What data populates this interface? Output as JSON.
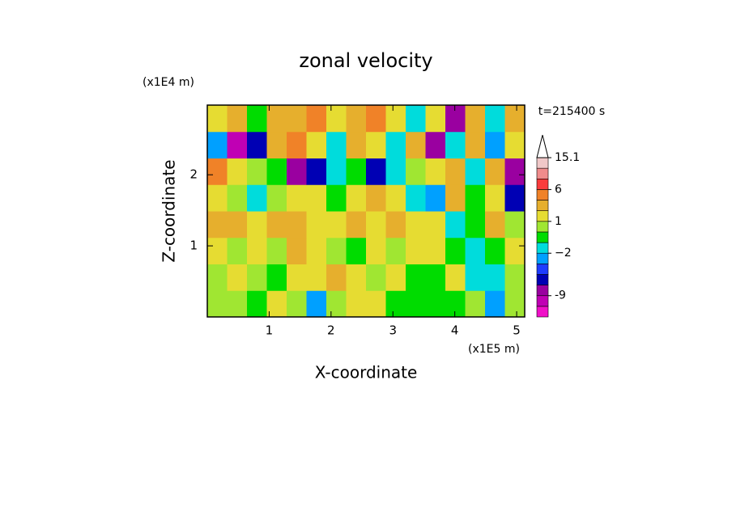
{
  "chart_data": {
    "type": "contour",
    "title": "zonal velocity",
    "time_label": "t=215400 s",
    "x_label": "X-coordinate",
    "y_label": "Z-coordinate",
    "x_unit": "(x1E5 m)",
    "y_unit": "(x1E4 m)",
    "xlim": [
      0,
      5.13
    ],
    "ylim": [
      0,
      2.98
    ],
    "xticks": [
      1,
      2,
      3,
      4,
      5
    ],
    "yticks": [
      1,
      2
    ],
    "levels": [
      -15,
      -12,
      -9,
      -6,
      -4,
      -3,
      -2,
      -1,
      0,
      1,
      2,
      4,
      6,
      9,
      12,
      15.1
    ],
    "level_labels": [
      {
        "value": -9,
        "label": "-9"
      },
      {
        "value": -2,
        "label": "−2"
      },
      {
        "value": 1,
        "label": "1"
      },
      {
        "value": 6,
        "label": "6"
      },
      {
        "value": 15.1,
        "label": "15.1"
      }
    ],
    "colors": [
      "#f010c8",
      "#c000b4",
      "#9a00a0",
      "#0000b4",
      "#1e3cff",
      "#00a0ff",
      "#00dcdc",
      "#00dc00",
      "#a0e632",
      "#e6dc32",
      "#e6af2d",
      "#f08228",
      "#fa3c3c",
      "#f08c8c",
      "#f0c8c8"
    ],
    "field": [
      [
        0,
        0.5,
        -0.5,
        1,
        0.5,
        -3,
        0.5,
        1.5,
        1,
        -0.5,
        -0.5,
        -1,
        -0.5,
        0.5,
        -3,
        0.5
      ],
      [
        0.5,
        1.5,
        0.5,
        -0.5,
        1.5,
        1.5,
        2,
        1.5,
        0.5,
        1.5,
        -0.5,
        -0.5,
        1.5,
        -1.5,
        -1.5,
        0.5
      ],
      [
        1.5,
        0.5,
        1.5,
        0.5,
        2,
        1.5,
        0.5,
        -0.5,
        1.5,
        0.5,
        1.5,
        1.5,
        -0.5,
        -1.5,
        -0.5,
        1.5
      ],
      [
        3,
        2,
        1.5,
        2,
        3,
        1.5,
        1.5,
        2,
        1.5,
        3,
        1.5,
        1.5,
        -1.5,
        -0.5,
        2,
        0.5
      ],
      [
        1.5,
        0.5,
        -1.5,
        0.5,
        1.5,
        1.5,
        -0.5,
        1.5,
        2,
        1.5,
        -1.5,
        -3,
        3,
        -0.5,
        1.5,
        -5
      ],
      [
        5,
        1.5,
        0.5,
        -0.5,
        -7,
        -5,
        -1.5,
        -0.5,
        -5,
        -1.5,
        0.5,
        1.5,
        3,
        -1.5,
        2,
        -7
      ],
      [
        -3,
        -10,
        -5,
        3,
        5,
        1.5,
        -1.5,
        3,
        1.5,
        -1.5,
        2,
        -7,
        -1.5,
        3,
        -3,
        1.5
      ],
      [
        1.5,
        3,
        -0.5,
        2,
        3,
        5,
        1.5,
        3,
        5,
        1.5,
        -1.5,
        1.5,
        -7,
        3,
        -1.5,
        3
      ]
    ]
  }
}
